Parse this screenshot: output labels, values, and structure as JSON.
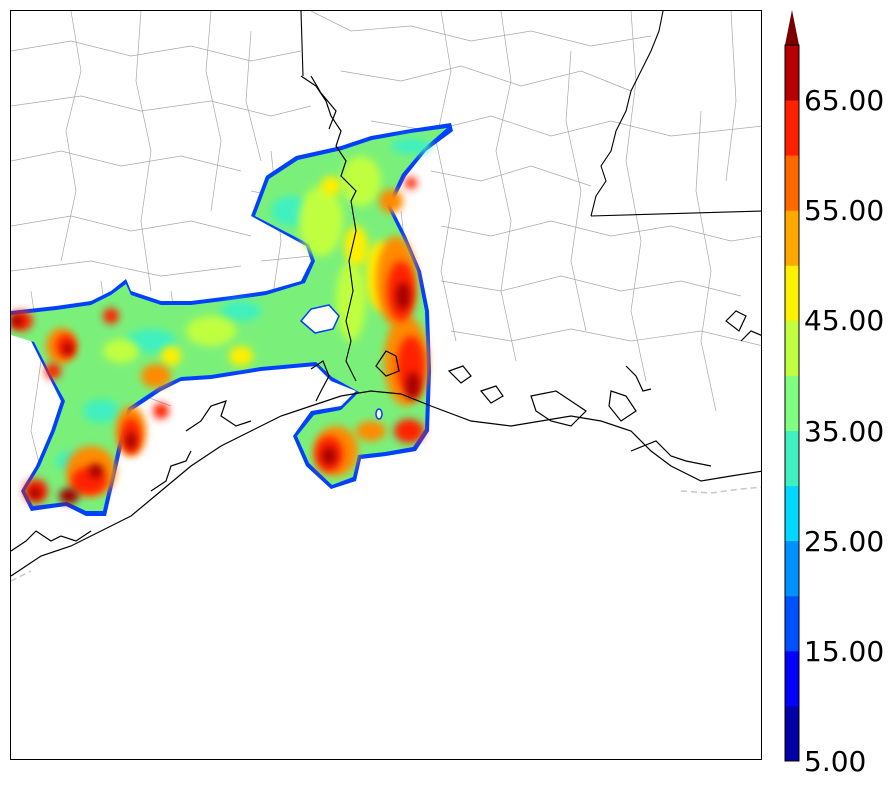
{
  "colorbar": {
    "tick_labels": [
      "5.00",
      "15.00",
      "25.00",
      "35.00",
      "45.00",
      "55.00",
      "65.00"
    ],
    "colors": [
      "#0000a8",
      "#0000ff",
      "#0050ff",
      "#0090ff",
      "#00d8ff",
      "#40f0c0",
      "#80ff80",
      "#c0ff40",
      "#ffef00",
      "#ffa800",
      "#ff6800",
      "#ff2000",
      "#b40000"
    ],
    "extend_color": "#7a0000"
  },
  "map": {
    "state_border_color": "#000000",
    "county_border_color": "#a0a0a0",
    "coast_color": "#000000"
  }
}
